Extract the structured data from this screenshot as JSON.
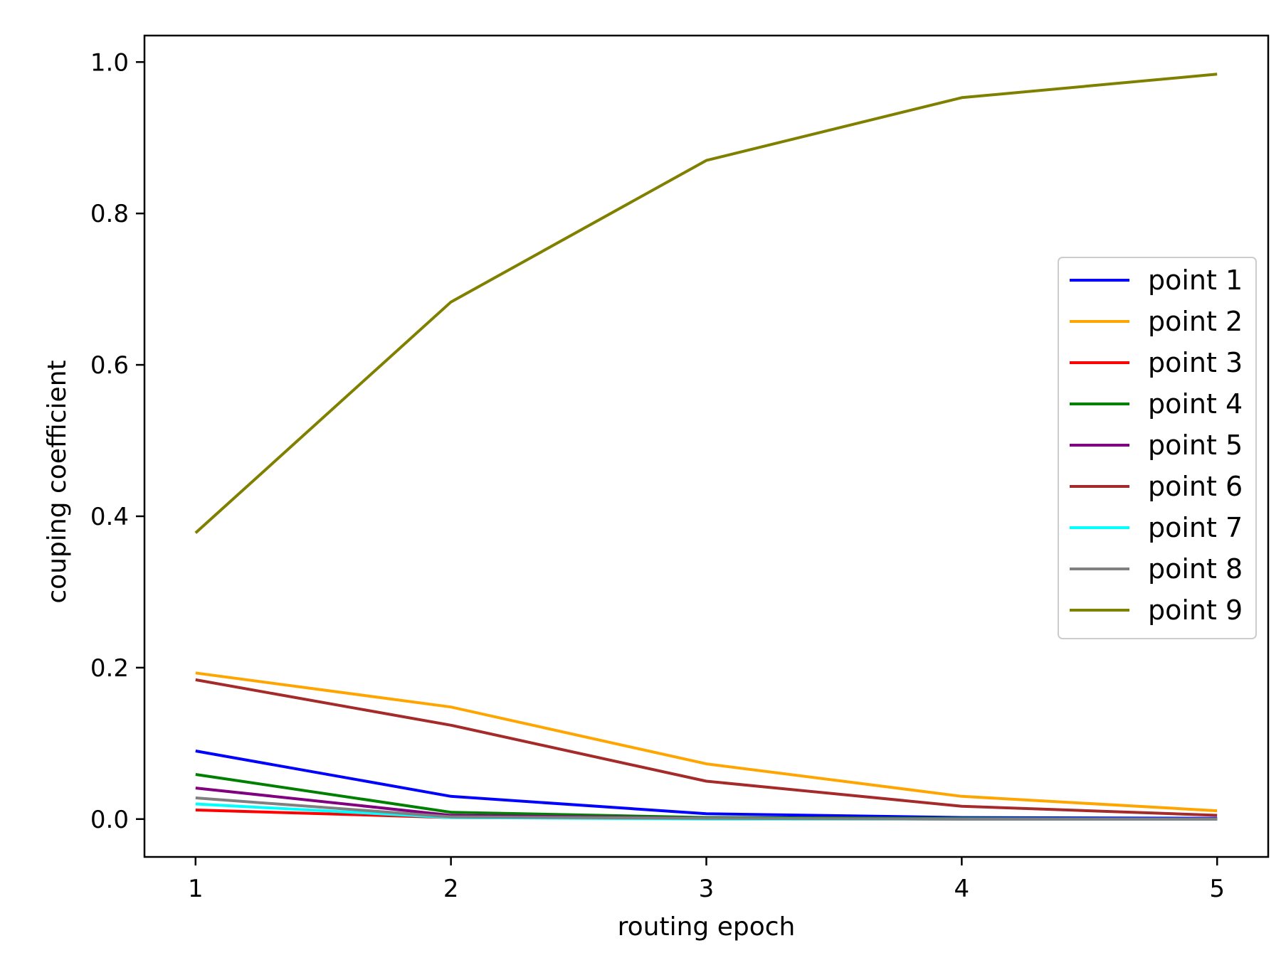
{
  "chart_data": {
    "type": "line",
    "title": "",
    "xlabel": "routing epoch",
    "ylabel": "couping coefficient",
    "xlim": [
      0.8,
      5.2
    ],
    "ylim": [
      -0.05,
      1.035
    ],
    "xticks": [
      1,
      2,
      3,
      4,
      5
    ],
    "xtick_labels": [
      "1",
      "2",
      "3",
      "4",
      "5"
    ],
    "yticks": [
      0.0,
      0.2,
      0.4,
      0.6,
      0.8,
      1.0
    ],
    "ytick_labels": [
      "0.0",
      "0.2",
      "0.4",
      "0.6",
      "0.8",
      "1.0"
    ],
    "grid": false,
    "legend_position": "center-right",
    "x": [
      1,
      2,
      3,
      4,
      5
    ],
    "series": [
      {
        "name": "point 1",
        "color": "#0000ff",
        "values": [
          0.09,
          0.03,
          0.007,
          0.002,
          0.001
        ]
      },
      {
        "name": "point 2",
        "color": "#ffa500",
        "values": [
          0.193,
          0.148,
          0.073,
          0.03,
          0.011
        ]
      },
      {
        "name": "point 3",
        "color": "#ff0000",
        "values": [
          0.012,
          0.002,
          0.001,
          0.0,
          0.0
        ]
      },
      {
        "name": "point 4",
        "color": "#008000",
        "values": [
          0.059,
          0.009,
          0.002,
          0.001,
          0.0
        ]
      },
      {
        "name": "point 5",
        "color": "#800080",
        "values": [
          0.041,
          0.005,
          0.001,
          0.0,
          0.0
        ]
      },
      {
        "name": "point 6",
        "color": "#a52a2a",
        "values": [
          0.184,
          0.124,
          0.05,
          0.017,
          0.005
        ]
      },
      {
        "name": "point 7",
        "color": "#00ffff",
        "values": [
          0.02,
          0.002,
          0.0,
          0.0,
          0.0
        ]
      },
      {
        "name": "point 8",
        "color": "#808080",
        "values": [
          0.028,
          0.003,
          0.001,
          0.0,
          0.0
        ]
      },
      {
        "name": "point 9",
        "color": "#808000",
        "values": [
          0.378,
          0.683,
          0.87,
          0.953,
          0.984
        ]
      }
    ]
  }
}
